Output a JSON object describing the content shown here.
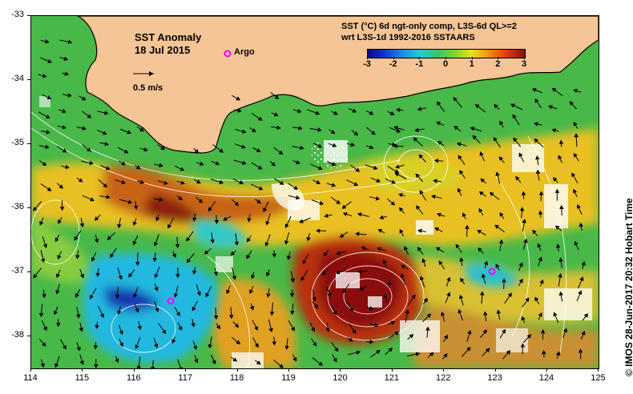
{
  "map": {
    "title": "SST Anomaly",
    "date": "18 Jul 2015",
    "scale_label": "0.5 m/s",
    "argo_label": "Argo",
    "info_line1": "SST (°C) 6d ngt-only comp, L3S-6d QL>=2",
    "info_line2": "wrt L3S-1d 1992-2016 SSTAARS",
    "credit": "© IMOS 28-Jun-2017 20:32 Hobart Time",
    "lon_ticks": [
      "114",
      "115",
      "116",
      "117",
      "118",
      "119",
      "120",
      "121",
      "122",
      "123",
      "124",
      "125"
    ],
    "lat_ticks": [
      "-33",
      "-34",
      "-35",
      "-36",
      "-37",
      "-38"
    ],
    "colorbar_ticks": [
      "-3",
      "-2",
      "-1",
      "0",
      "1",
      "2",
      "3"
    ],
    "colors": {
      "land": "#f5c596",
      "coast": "#000000",
      "warm_eddy": "#a82008",
      "cool_patch": "#22b8e0",
      "argo_marker": "#ff00ff"
    }
  }
}
